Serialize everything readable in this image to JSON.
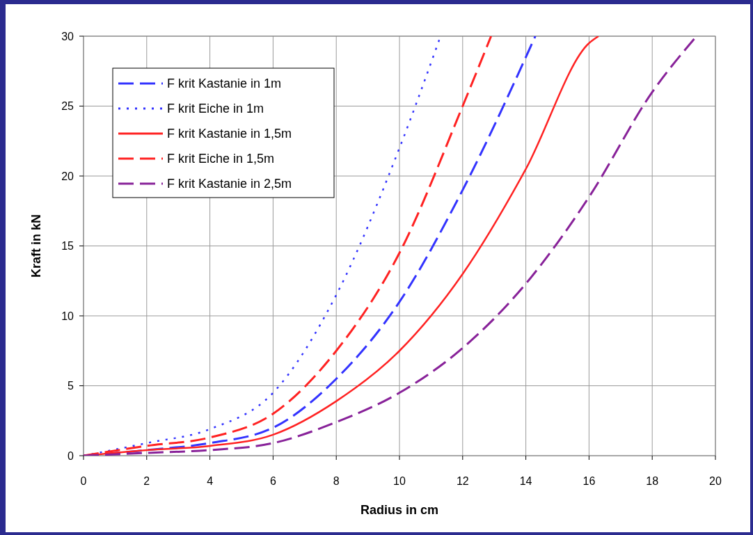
{
  "chart_data": {
    "type": "line",
    "xlabel": "Radius in cm",
    "ylabel": "Kraft in kN",
    "xlim": [
      0,
      20
    ],
    "ylim": [
      0,
      30
    ],
    "xticks": [
      0,
      2,
      4,
      6,
      8,
      10,
      12,
      14,
      16,
      18,
      20
    ],
    "yticks": [
      0,
      5,
      10,
      15,
      20,
      25,
      30
    ],
    "grid": true,
    "legend": "top left",
    "series": [
      {
        "name": "F krit Kastanie in 1m",
        "color": "#3333ff",
        "line_style": "dashed",
        "x": [
          0,
          2,
          4,
          6,
          8,
          10,
          12,
          14,
          14.3
        ],
        "values": [
          0,
          0.4,
          0.9,
          2,
          5.5,
          11,
          19,
          28.5,
          30
        ]
      },
      {
        "name": "F krit Eiche in 1m",
        "color": "#3333ff",
        "line_style": "dotted",
        "x": [
          0,
          2,
          4,
          6,
          8,
          10,
          11.3
        ],
        "values": [
          0,
          0.9,
          1.9,
          4.5,
          11.5,
          22,
          30
        ]
      },
      {
        "name": "F krit Kastanie in 1,5m",
        "color": "#ff2222",
        "line_style": "solid",
        "x": [
          0,
          2,
          4,
          6,
          8,
          10,
          12,
          14,
          16,
          16.3
        ],
        "values": [
          0,
          0.4,
          0.7,
          1.5,
          3.9,
          7.5,
          13,
          20.5,
          29.5,
          30
        ]
      },
      {
        "name": "F krit Eiche in 1,5m",
        "color": "#ff2222",
        "line_style": "dashed",
        "x": [
          0,
          2,
          4,
          6,
          8,
          10,
          12,
          12.9
        ],
        "values": [
          0,
          0.7,
          1.3,
          3,
          7.5,
          14.5,
          25,
          30
        ]
      },
      {
        "name": "F krit Kastanie in 2,5m",
        "color": "#882299",
        "line_style": "dashed",
        "x": [
          0,
          2,
          4,
          6,
          8,
          10,
          12,
          14,
          16,
          18,
          19.4
        ],
        "values": [
          0,
          0.2,
          0.4,
          0.9,
          2.4,
          4.5,
          7.7,
          12.3,
          18.5,
          26,
          30
        ]
      }
    ]
  }
}
